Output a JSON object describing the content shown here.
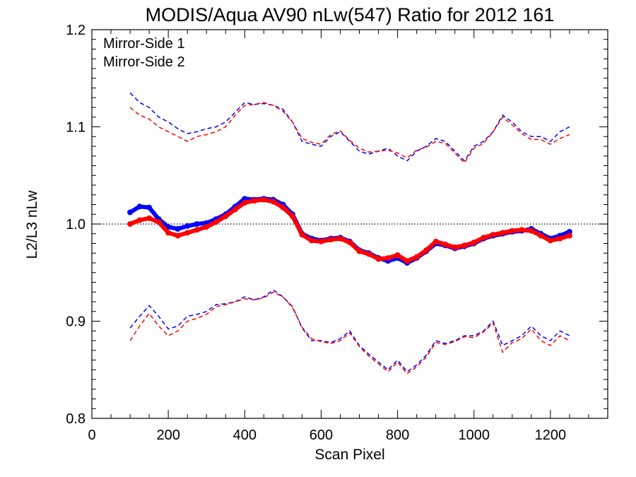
{
  "chart_data": {
    "type": "line",
    "title": "MODIS/Aqua AV90 nLw(547) Ratio for 2012 161",
    "xlabel": "Scan Pixel",
    "ylabel": "L2/L3 nLw",
    "xlim": [
      0,
      1350
    ],
    "ylim": [
      0.8,
      1.2
    ],
    "x_ticks": [
      "0",
      "200",
      "400",
      "600",
      "800",
      "1000",
      "1200"
    ],
    "y_ticks": [
      "0.8",
      "0.9",
      "1.0",
      "1.1",
      "1.2"
    ],
    "grid": false,
    "legend_position": "top-left",
    "reference_line": {
      "y": 1.0,
      "style": "dotted"
    },
    "x": [
      100,
      125,
      150,
      175,
      200,
      225,
      250,
      275,
      300,
      325,
      350,
      375,
      400,
      425,
      450,
      475,
      500,
      525,
      550,
      575,
      600,
      625,
      650,
      675,
      700,
      725,
      750,
      775,
      800,
      825,
      850,
      875,
      900,
      925,
      950,
      975,
      1000,
      1025,
      1050,
      1075,
      1100,
      1125,
      1150,
      1175,
      1200,
      1225,
      1250
    ],
    "series": [
      {
        "name": "Mirror-Side 1",
        "color": "#0000ff",
        "mean": [
          1.012,
          1.018,
          1.017,
          1.005,
          0.997,
          0.995,
          0.998,
          1.0,
          1.001,
          1.005,
          1.01,
          1.018,
          1.026,
          1.025,
          1.026,
          1.025,
          1.02,
          1.01,
          0.99,
          0.985,
          0.983,
          0.985,
          0.986,
          0.982,
          0.973,
          0.97,
          0.965,
          0.962,
          0.965,
          0.96,
          0.965,
          0.972,
          0.98,
          0.978,
          0.975,
          0.977,
          0.98,
          0.985,
          0.988,
          0.99,
          0.992,
          0.993,
          0.995,
          0.99,
          0.985,
          0.988,
          0.992
        ],
        "upper": [
          1.135,
          1.125,
          1.12,
          1.11,
          1.105,
          1.098,
          1.093,
          1.095,
          1.098,
          1.1,
          1.105,
          1.115,
          1.125,
          1.123,
          1.124,
          1.122,
          1.118,
          1.105,
          1.085,
          1.082,
          1.08,
          1.09,
          1.095,
          1.085,
          1.075,
          1.072,
          1.075,
          1.078,
          1.07,
          1.065,
          1.075,
          1.08,
          1.088,
          1.085,
          1.075,
          1.065,
          1.08,
          1.085,
          1.095,
          1.112,
          1.105,
          1.095,
          1.09,
          1.09,
          1.085,
          1.095,
          1.1
        ],
        "lower": [
          0.893,
          0.905,
          0.916,
          0.905,
          0.892,
          0.895,
          0.905,
          0.907,
          0.91,
          0.917,
          0.918,
          0.92,
          0.925,
          0.922,
          0.925,
          0.932,
          0.925,
          0.915,
          0.893,
          0.88,
          0.88,
          0.878,
          0.882,
          0.89,
          0.875,
          0.866,
          0.858,
          0.85,
          0.86,
          0.848,
          0.855,
          0.865,
          0.88,
          0.877,
          0.88,
          0.885,
          0.885,
          0.89,
          0.9,
          0.875,
          0.88,
          0.885,
          0.895,
          0.885,
          0.88,
          0.89,
          0.885
        ]
      },
      {
        "name": "Mirror-Side 2",
        "color": "#ff0000",
        "mean": [
          1.0,
          1.004,
          1.006,
          1.002,
          0.991,
          0.988,
          0.991,
          0.994,
          0.997,
          1.002,
          1.008,
          1.015,
          1.022,
          1.024,
          1.025,
          1.023,
          1.017,
          1.008,
          0.989,
          0.983,
          0.982,
          0.984,
          0.985,
          0.981,
          0.972,
          0.969,
          0.964,
          0.965,
          0.968,
          0.962,
          0.966,
          0.973,
          0.982,
          0.979,
          0.976,
          0.978,
          0.981,
          0.986,
          0.989,
          0.991,
          0.993,
          0.994,
          0.993,
          0.988,
          0.983,
          0.985,
          0.988
        ],
        "upper": [
          1.12,
          1.112,
          1.108,
          1.1,
          1.095,
          1.09,
          1.085,
          1.09,
          1.092,
          1.095,
          1.1,
          1.112,
          1.122,
          1.123,
          1.125,
          1.122,
          1.116,
          1.105,
          1.088,
          1.084,
          1.082,
          1.092,
          1.096,
          1.086,
          1.078,
          1.074,
          1.075,
          1.076,
          1.073,
          1.068,
          1.076,
          1.079,
          1.085,
          1.083,
          1.073,
          1.063,
          1.078,
          1.083,
          1.095,
          1.11,
          1.102,
          1.093,
          1.087,
          1.087,
          1.082,
          1.088,
          1.092
        ],
        "lower": [
          0.88,
          0.895,
          0.908,
          0.895,
          0.885,
          0.89,
          0.9,
          0.903,
          0.907,
          0.915,
          0.917,
          0.92,
          0.923,
          0.922,
          0.924,
          0.93,
          0.925,
          0.914,
          0.894,
          0.882,
          0.879,
          0.877,
          0.88,
          0.888,
          0.874,
          0.864,
          0.856,
          0.848,
          0.858,
          0.846,
          0.853,
          0.863,
          0.878,
          0.876,
          0.879,
          0.884,
          0.883,
          0.889,
          0.898,
          0.868,
          0.878,
          0.882,
          0.892,
          0.88,
          0.875,
          0.885,
          0.88
        ]
      }
    ]
  }
}
